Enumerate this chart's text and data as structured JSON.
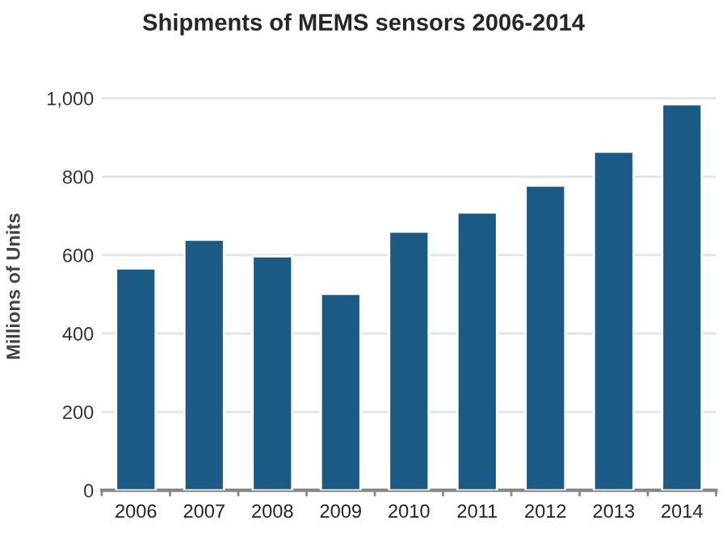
{
  "chart_data": {
    "type": "bar",
    "title": "Shipments of MEMS sensors 2006-2014",
    "ylabel": "Millions of Units",
    "categories": [
      "2006",
      "2007",
      "2008",
      "2009",
      "2010",
      "2011",
      "2012",
      "2013",
      "2014"
    ],
    "values": [
      566,
      639,
      597,
      501,
      660,
      709,
      777,
      864,
      985
    ],
    "color": "#1a5a85",
    "ylim": [
      0,
      1000
    ],
    "yticks": [
      0,
      200,
      400,
      600,
      800,
      {
        "value": 1000,
        "label": "1,000"
      }
    ],
    "grid": "y",
    "legend": false
  }
}
